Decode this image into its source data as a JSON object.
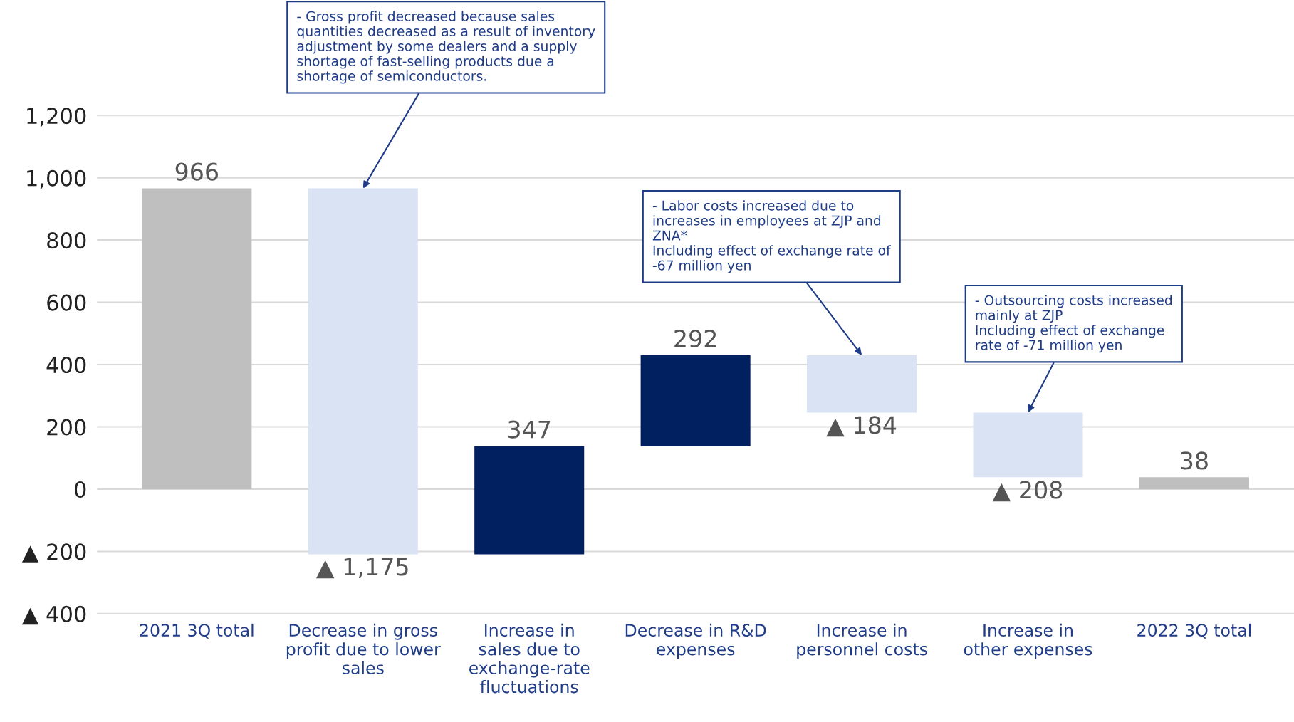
{
  "chart_data": {
    "type": "bar",
    "categories": [
      "2021 3Q total",
      "Decrease in gross\nprofit due to lower\nsales",
      "Increase in\nsales due to\nexchange-rate\nfluctuations",
      "Decrease in R&D\nexpenses",
      "Increase in\npersonnel costs",
      "Increase in\nother expenses",
      "2022 3Q total"
    ],
    "values": [
      966,
      -1175,
      347,
      292,
      -184,
      -208,
      38
    ],
    "base": [
      0,
      966,
      -209,
      138,
      430,
      246,
      0
    ],
    "colors": [
      "#bfbfbf",
      "#dae3f3",
      "#002060",
      "#002060",
      "#dae3f3",
      "#dae3f3",
      "#bfbfbf"
    ],
    "value_labels": [
      "966",
      "▲ 1,175",
      "347",
      "292",
      "▲ 184",
      "▲ 208",
      "38"
    ],
    "ylim": [
      -400,
      1200
    ],
    "yticks": [
      {
        "value": -400,
        "label": "▲ 400"
      },
      {
        "value": -200,
        "label": "▲ 200"
      },
      0,
      200,
      400,
      600,
      800,
      {
        "value": 1000,
        "label": "1,000"
      },
      {
        "value": 1200,
        "label": "1,200"
      }
    ],
    "grid": "y",
    "annotations": [
      {
        "text": "- Gross profit decreased because sales\nquantities decreased as a result of inventory\nadjustment by some dealers and a supply\nshortage of fast-selling products due a\nshortage of semiconductors.",
        "x": "Decrease in gross\nprofit due to lower\nsales",
        "y": 966
      },
      {
        "text": "- Labor costs increased due to\nincreases in employees at ZJP and\nZNA*\nIncluding effect of exchange rate of\n-67 million yen",
        "x": "Increase in\npersonnel costs",
        "y": 430
      },
      {
        "text": "- Outsourcing costs increased\nmainly at ZJP\nIncluding effect of exchange\nrate of -71 million yen",
        "x": "Increase in\nother expenses",
        "y": 246
      }
    ]
  }
}
